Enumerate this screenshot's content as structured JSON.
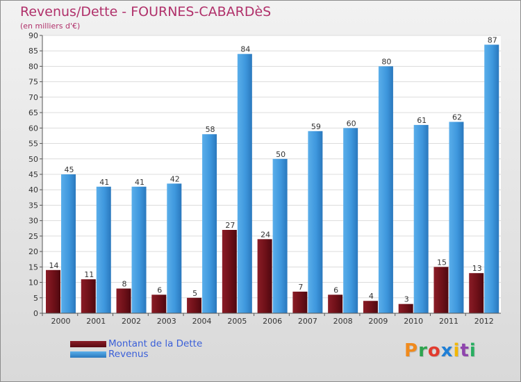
{
  "title": "Revenus/Dette - FOURNES-CABARDèS",
  "subtitle": "(en milliers d'€)",
  "logo_text": "Proxiti",
  "colors": {
    "dette": "#6e1018",
    "revenus": "#3e97dd",
    "title": "#b0306a",
    "legend_text": "#3a5fd8"
  },
  "legend": {
    "dette_label": "Montant de la Dette",
    "revenus_label": "Revenus"
  },
  "chart_data": {
    "type": "bar",
    "title": "Revenus/Dette - FOURNES-CABARDèS",
    "ylabel": "(en milliers d'€)",
    "xlabel": "",
    "categories": [
      "2000",
      "2001",
      "2002",
      "2003",
      "2004",
      "2005",
      "2006",
      "2007",
      "2008",
      "2009",
      "2010",
      "2011",
      "2012"
    ],
    "series": [
      {
        "name": "Montant de la Dette",
        "values": [
          14,
          11,
          8,
          6,
          5,
          27,
          24,
          7,
          6,
          4,
          3,
          15,
          13
        ]
      },
      {
        "name": "Revenus",
        "values": [
          45,
          41,
          41,
          42,
          58,
          84,
          50,
          59,
          60,
          80,
          61,
          62,
          87
        ]
      }
    ],
    "ylim": [
      0,
      90
    ],
    "yticks": [
      0,
      5,
      10,
      15,
      20,
      25,
      30,
      35,
      40,
      45,
      50,
      55,
      60,
      65,
      70,
      75,
      80,
      85,
      90
    ],
    "grid": true,
    "legend_position": "bottom-left"
  }
}
